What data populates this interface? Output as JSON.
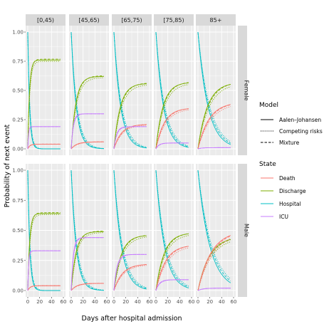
{
  "chart_data": {
    "type": "line",
    "xlabel": "Days after hospital admission",
    "ylabel": "Probability of next event",
    "xlim": [
      0,
      60
    ],
    "ylim": [
      0,
      1
    ],
    "x_ticks": [
      "0",
      "20",
      "40",
      "60"
    ],
    "y_ticks": [
      "0.00",
      "0.25",
      "0.50",
      "0.75",
      "1.00"
    ],
    "column_facets": [
      "[0,45)",
      "[45,65)",
      "[65,75)",
      "[75,85)",
      "85+"
    ],
    "row_facets": [
      "Female",
      "Male"
    ],
    "legend_model": {
      "title": "Model",
      "entries": [
        {
          "label": "Aalen–Johansen",
          "dash": "solid"
        },
        {
          "label": "Competing risks",
          "dash": "dotted"
        },
        {
          "label": "Mixture",
          "dash": "dashed"
        }
      ]
    },
    "legend_state": {
      "title": "State",
      "entries": [
        {
          "label": "Death",
          "color": "#F8766D"
        },
        {
          "label": "Discharge",
          "color": "#7CAE00"
        },
        {
          "label": "Hospital",
          "color": "#00BFC4"
        },
        {
          "label": "ICU",
          "color": "#C77CFF"
        }
      ]
    },
    "panels": [
      {
        "row": "Female",
        "col": "[0,45)",
        "death": 0.04,
        "discharge": 0.76,
        "icu": 0.19,
        "hospital_rate": 0.33,
        "xmax": 55
      },
      {
        "row": "Female",
        "col": "[45,65)",
        "death": 0.06,
        "discharge": 0.62,
        "icu": 0.3,
        "hospital_rate": 0.12,
        "xmax": 55
      },
      {
        "row": "Female",
        "col": "[65,75)",
        "death": 0.21,
        "discharge": 0.56,
        "icu": 0.19,
        "hospital_rate": 0.09,
        "xmax": 55
      },
      {
        "row": "Female",
        "col": "[75,85)",
        "death": 0.35,
        "discharge": 0.57,
        "icu": 0.05,
        "hospital_rate": 0.08,
        "xmax": 55
      },
      {
        "row": "Female",
        "col": "85+",
        "death": 0.4,
        "discharge": 0.57,
        "icu": 0.01,
        "hospital_rate": 0.06,
        "xmax": 55
      },
      {
        "row": "Male",
        "col": "[0,45)",
        "death": 0.04,
        "discharge": 0.64,
        "icu": 0.33,
        "hospital_rate": 0.3,
        "xmax": 55
      },
      {
        "row": "Male",
        "col": "[45,65)",
        "death": 0.06,
        "discharge": 0.49,
        "icu": 0.44,
        "hospital_rate": 0.12,
        "xmax": 55
      },
      {
        "row": "Male",
        "col": "[65,75)",
        "death": 0.22,
        "discharge": 0.46,
        "icu": 0.3,
        "hospital_rate": 0.08,
        "xmax": 55
      },
      {
        "row": "Male",
        "col": "[75,85)",
        "death": 0.38,
        "discharge": 0.48,
        "icu": 0.09,
        "hospital_rate": 0.07,
        "xmax": 55
      },
      {
        "row": "Male",
        "col": "85+",
        "death": 0.5,
        "discharge": 0.45,
        "icu": 0.02,
        "hospital_rate": 0.05,
        "xmax": 55
      }
    ]
  }
}
